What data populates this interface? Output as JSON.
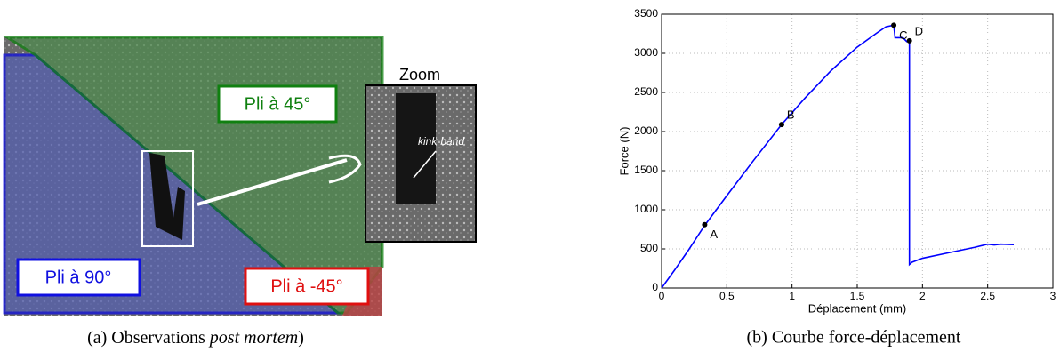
{
  "figure": {
    "left": {
      "label_45": "Pli à 45°",
      "label_90": "Pli à 90°",
      "label_m45": "Pli à -45°",
      "zoom": "Zoom",
      "kink": "kink-band"
    },
    "caption_a": {
      "start": "(a) Observations ",
      "italic": "post mortem",
      "end": ")"
    },
    "caption_b": "(b) Courbe force-déplacement"
  },
  "chart_data": {
    "type": "line",
    "x_label": "Déplacement (mm)",
    "y_label": "Force (N)",
    "xlim": [
      0,
      3
    ],
    "xticks": [
      0,
      0.5,
      1,
      1.5,
      2,
      2.5,
      3
    ],
    "ylim": [
      0,
      3500
    ],
    "yticks": [
      0,
      500,
      1000,
      1500,
      2000,
      2500,
      3000,
      3500
    ],
    "grid": true,
    "x": [
      0,
      0.1,
      0.2,
      0.33,
      0.5,
      0.7,
      0.92,
      1.1,
      1.3,
      1.5,
      1.65,
      1.72,
      1.78,
      1.79,
      1.85,
      1.88,
      1.9,
      1.9,
      1.92,
      2.0,
      2.2,
      2.4,
      2.5,
      2.55,
      2.6,
      2.7
    ],
    "series": [
      {
        "color": "#0000ff",
        "values": [
          0,
          230,
          470,
          800,
          1180,
          1620,
          2090,
          2430,
          2780,
          3080,
          3260,
          3340,
          3360,
          3200,
          3200,
          3150,
          3150,
          300,
          330,
          380,
          450,
          520,
          560,
          550,
          560,
          555
        ]
      }
    ],
    "points": [
      {
        "label": "A",
        "x": 0.33,
        "y": 810
      },
      {
        "label": "B",
        "x": 0.92,
        "y": 2090
      },
      {
        "label": "C",
        "x": 1.78,
        "y": 3360
      },
      {
        "label": "D",
        "x": 1.9,
        "y": 3160
      }
    ]
  }
}
